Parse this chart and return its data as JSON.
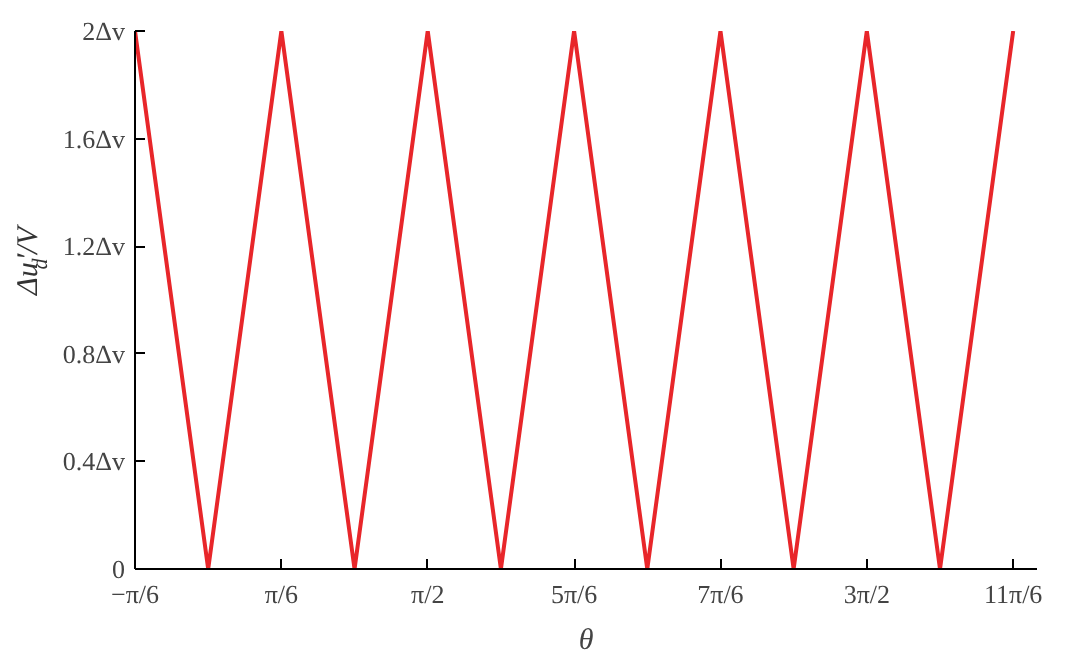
{
  "chart_data": {
    "type": "line",
    "xlabel": "θ",
    "ylabel": "Δu$_{d}$′/V",
    "x": [
      -0.5236,
      0,
      0.5236,
      1.0472,
      1.5708,
      2.0944,
      2.618,
      3.1416,
      3.6652,
      4.1888,
      4.7124,
      5.236,
      5.7596
    ],
    "series": [
      {
        "color": "#e8262a",
        "values": [
          2,
          0,
          2,
          0,
          2,
          0,
          2,
          0,
          2,
          0,
          2,
          0,
          2
        ]
      }
    ],
    "xlim": [
      -0.5236,
      5.93
    ],
    "ylim": [
      0,
      2
    ],
    "xticks": [
      {
        "value": -0.5236,
        "label": "−π/6"
      },
      {
        "value": 0.5236,
        "label": "π/6"
      },
      {
        "value": 1.5708,
        "label": "π/2"
      },
      {
        "value": 2.618,
        "label": "5π/6"
      },
      {
        "value": 3.6652,
        "label": "7π/6"
      },
      {
        "value": 4.7124,
        "label": "3π/2"
      },
      {
        "value": 5.7596,
        "label": "11π/6"
      }
    ],
    "yticks": [
      0,
      {
        "value": 0.4,
        "label": "0.4Δv"
      },
      {
        "value": 0.8,
        "label": "0.8Δv"
      },
      {
        "value": 1.2,
        "label": "1.2Δv"
      },
      {
        "value": 1.6,
        "label": "1.6Δv"
      },
      {
        "value": 2,
        "label": "2Δv"
      }
    ],
    "grid": false,
    "line_style": "solid"
  }
}
